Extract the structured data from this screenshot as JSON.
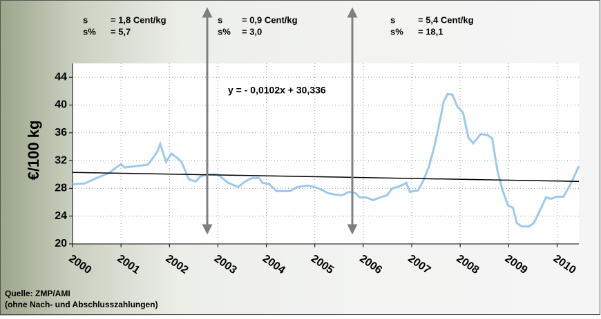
{
  "chart_data": {
    "type": "line",
    "y_label": "€/100 kg",
    "xlim": [
      2000,
      2010.45
    ],
    "ylim": [
      20,
      46
    ],
    "xticks": [
      2000,
      2001,
      2002,
      2003,
      2004,
      2005,
      2006,
      2007,
      2008,
      2009,
      2010
    ],
    "yticks": [
      20,
      24,
      28,
      32,
      36,
      40,
      44
    ],
    "grid": true,
    "series": [
      {
        "color": "#9cc8ef",
        "x": [
          2000.0,
          2000.25,
          2000.5,
          2000.75,
          2000.9,
          2001.0,
          2001.08,
          2001.3,
          2001.55,
          2001.65,
          2001.75,
          2001.81,
          2001.93,
          2002.04,
          2002.18,
          2002.25,
          2002.4,
          2002.54,
          2002.64,
          2002.78,
          2003.0,
          2003.21,
          2003.42,
          2003.56,
          2003.71,
          2003.85,
          2003.92,
          2004.06,
          2004.21,
          2004.49,
          2004.64,
          2004.85,
          2004.99,
          2005.14,
          2005.28,
          2005.42,
          2005.56,
          2005.71,
          2005.85,
          2005.92,
          2006.06,
          2006.2,
          2006.35,
          2006.49,
          2006.6,
          2006.75,
          2006.89,
          2006.96,
          2007.13,
          2007.23,
          2007.35,
          2007.46,
          2007.56,
          2007.66,
          2007.74,
          2007.84,
          2007.94,
          2008.06,
          2008.17,
          2008.27,
          2008.42,
          2008.56,
          2008.66,
          2008.77,
          2008.87,
          2008.99,
          2009.09,
          2009.17,
          2009.27,
          2009.42,
          2009.52,
          2009.66,
          2009.77,
          2009.88,
          2009.98,
          2010.13,
          2010.27,
          2010.45
        ],
        "values": [
          28.6,
          28.7,
          29.5,
          30.2,
          31.0,
          31.5,
          31.0,
          31.2,
          31.4,
          32.3,
          33.3,
          34.4,
          31.8,
          33.0,
          32.3,
          31.8,
          29.3,
          29.0,
          29.7,
          30.0,
          30.0,
          28.8,
          28.2,
          29.0,
          29.5,
          29.5,
          28.8,
          28.6,
          27.6,
          27.6,
          28.2,
          28.4,
          28.2,
          27.8,
          27.3,
          27.1,
          27.0,
          27.5,
          27.3,
          26.7,
          26.7,
          26.3,
          26.7,
          27.0,
          28.0,
          28.3,
          28.8,
          27.5,
          27.7,
          29.0,
          31.0,
          33.8,
          37.0,
          40.5,
          41.6,
          41.5,
          39.8,
          38.9,
          35.3,
          34.5,
          35.8,
          35.7,
          35.2,
          30.5,
          27.8,
          25.5,
          25.2,
          23.0,
          22.5,
          22.5,
          23.0,
          25.0,
          26.7,
          26.5,
          26.8,
          26.8,
          28.5,
          31.2
        ]
      },
      {
        "color": "#000000",
        "x": [
          2000,
          2010.45
        ],
        "values": [
          30.3,
          29.0
        ]
      }
    ],
    "trend_equation": "y = - 0,0102x + 30,336",
    "annotations": [
      {
        "rows": [
          [
            "s",
            "= 1,8 Cent/kg"
          ],
          [
            "s%",
            "= 5,7"
          ]
        ]
      },
      {
        "rows": [
          [
            "s",
            "= 0,9 Cent/kg"
          ],
          [
            "s%",
            "= 3,0"
          ]
        ]
      },
      {
        "rows": [
          [
            "s",
            "= 5,4 Cent/kg"
          ],
          [
            "s%",
            "= 18,1"
          ]
        ]
      }
    ],
    "source": [
      "Quelle: ZMP/AMI",
      "(ohne Nach- und Abschlusszahlungen)"
    ]
  }
}
